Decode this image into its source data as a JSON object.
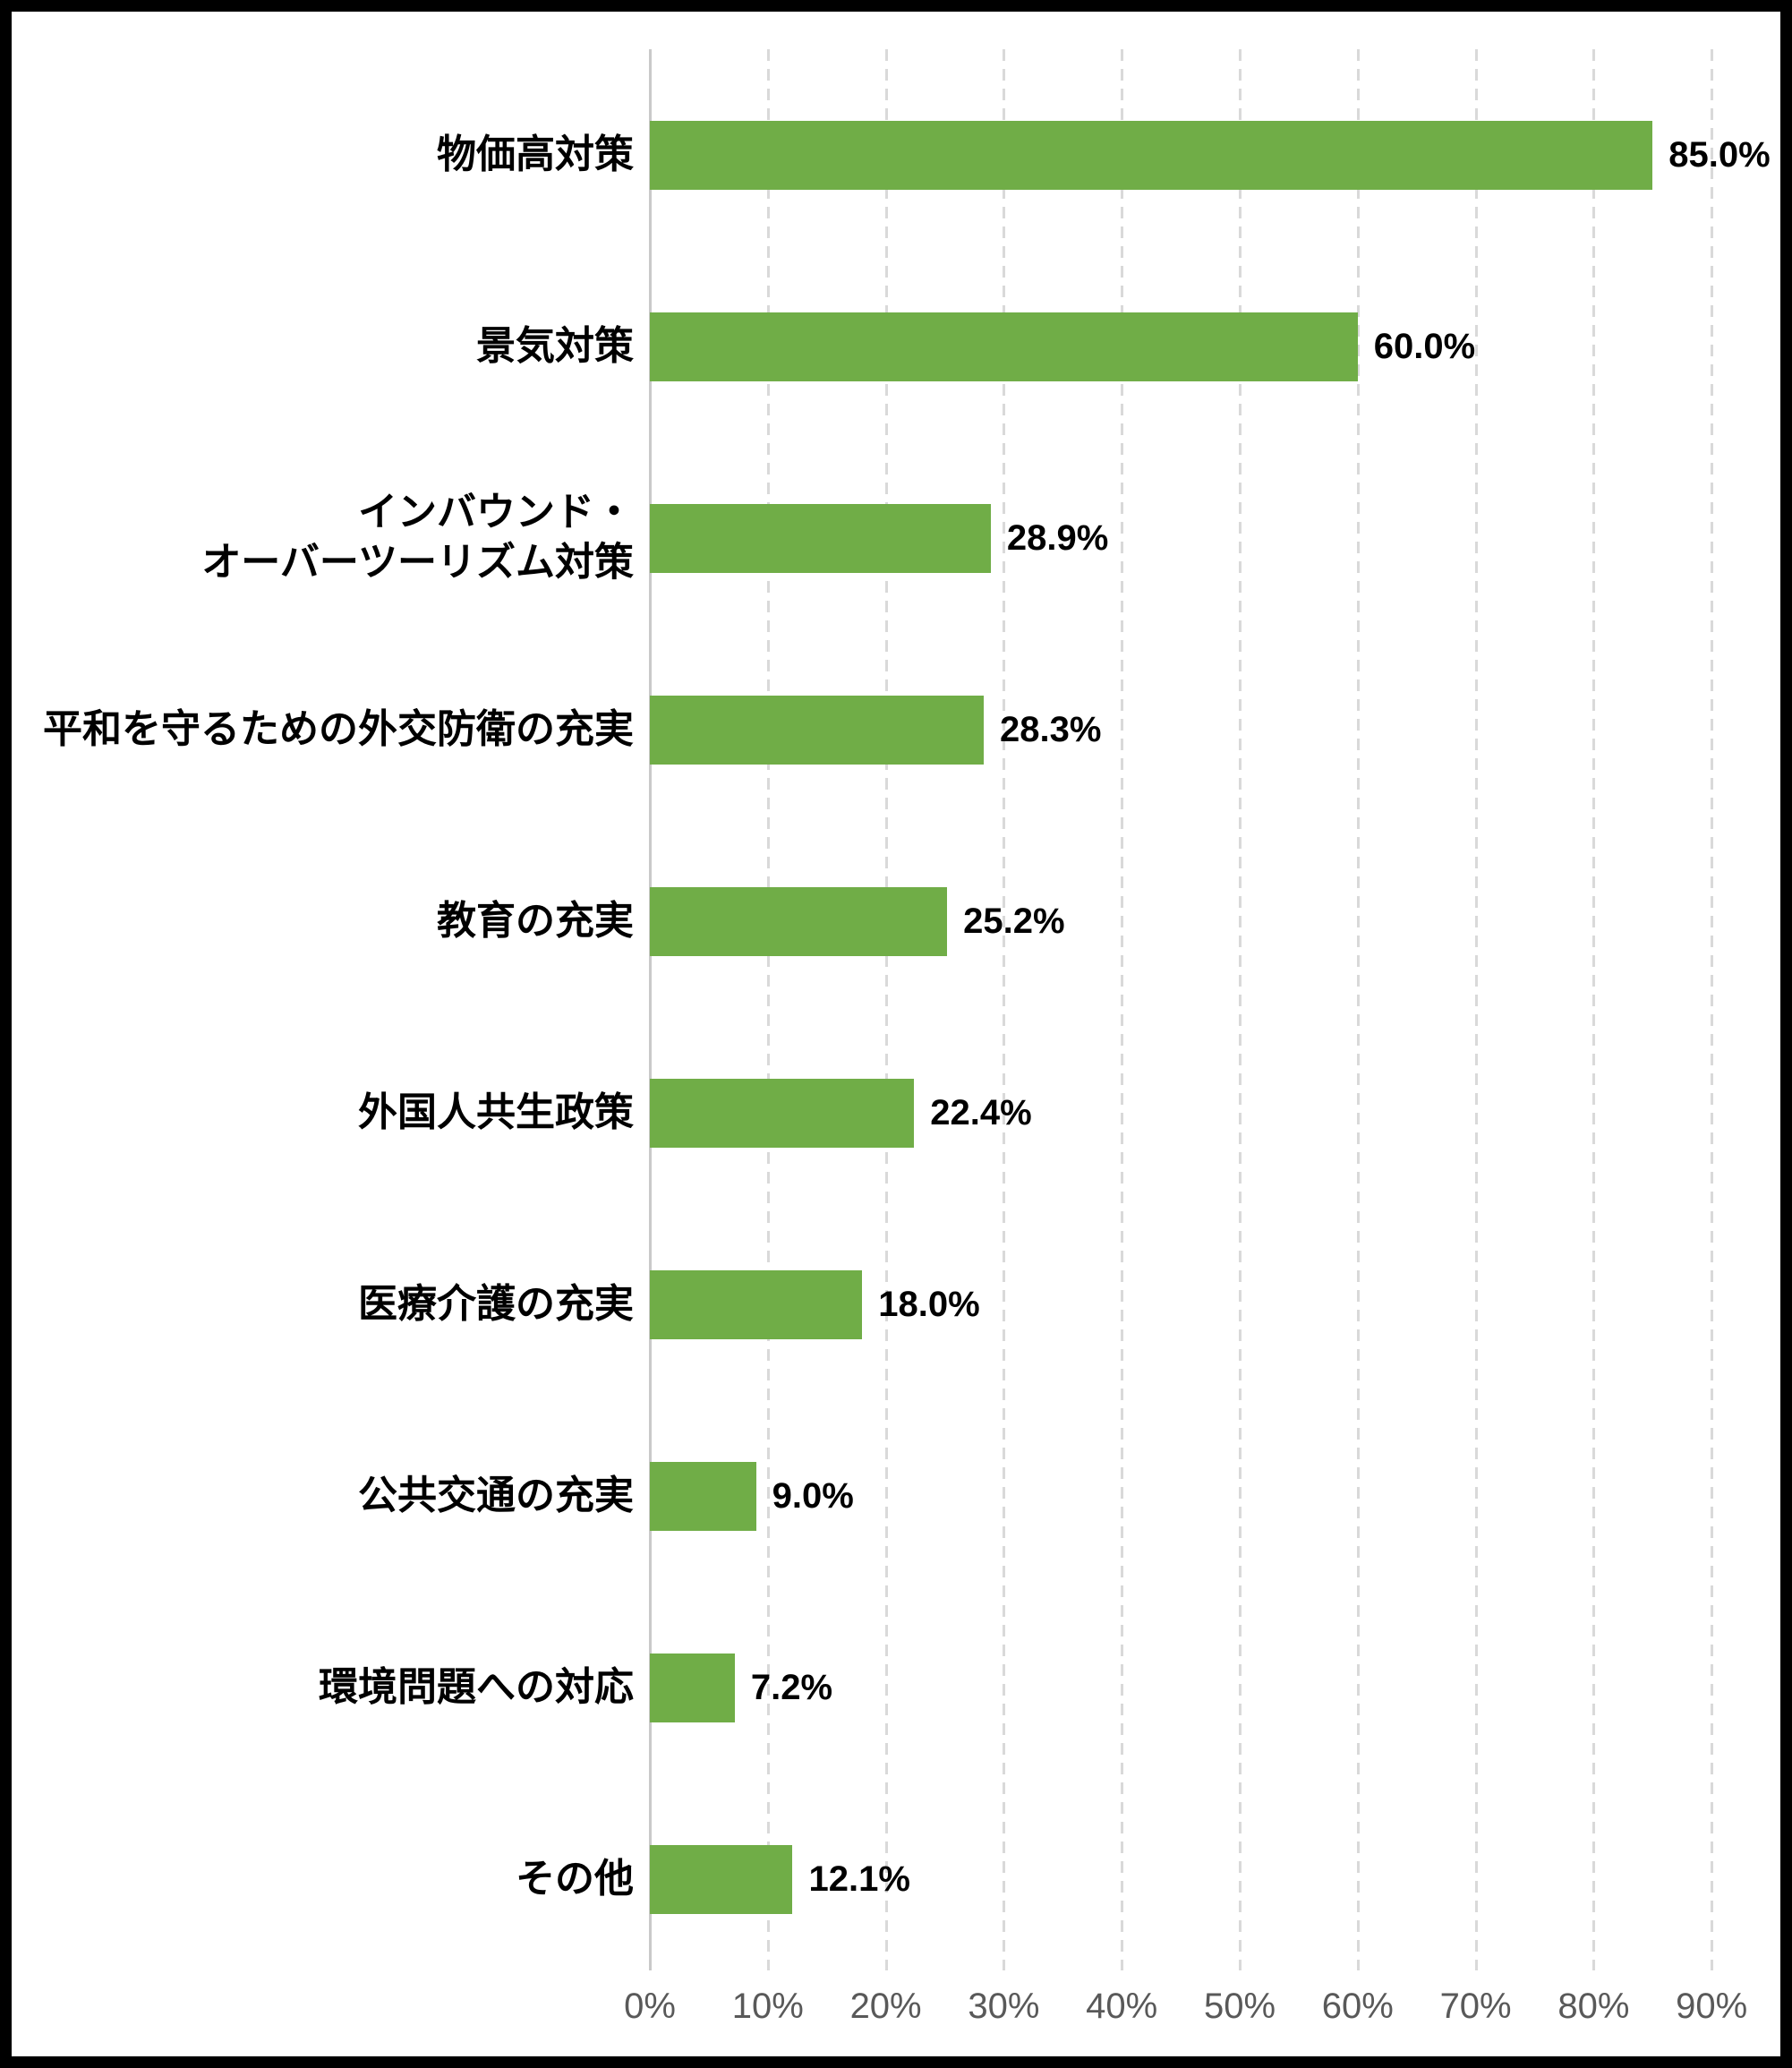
{
  "chart_data": {
    "type": "bar",
    "orientation": "horizontal",
    "title": "",
    "xlabel": "",
    "ylabel": "",
    "categories": [
      "物価高対策",
      "景気対策",
      "インバウンド・\nオーバーツーリズム対策",
      "平和を守るための外交防衛の充実",
      "教育の充実",
      "外国人共生政策",
      "医療介護の充実",
      "公共交通の充実",
      "環境問題への対応",
      "その他"
    ],
    "values": [
      85.0,
      60.0,
      28.9,
      28.3,
      25.2,
      22.4,
      18.0,
      9.0,
      7.2,
      12.1
    ],
    "value_labels": [
      "85.0%",
      "60.0%",
      "28.9%",
      "28.3%",
      "25.2%",
      "22.4%",
      "18.0%",
      "9.0%",
      "7.2%",
      "12.1%"
    ],
    "xlim": [
      0,
      90
    ],
    "x_tick_values": [
      0,
      10,
      20,
      30,
      40,
      50,
      60,
      70,
      80,
      90
    ],
    "x_tick_labels": [
      "0%",
      "10%",
      "20%",
      "30%",
      "40%",
      "50%",
      "60%",
      "70%",
      "80%",
      "90%"
    ],
    "grid": "vertical-dashed",
    "legend": "none",
    "colors": {
      "bar": "#70AD47",
      "category_text": "#000000",
      "value_text": "#000000",
      "tick_text": "#595959",
      "gridline": "#D9D9D9",
      "axis_line": "#C9C9C9",
      "background": "#FFFFFF",
      "frame": "#000000"
    }
  }
}
